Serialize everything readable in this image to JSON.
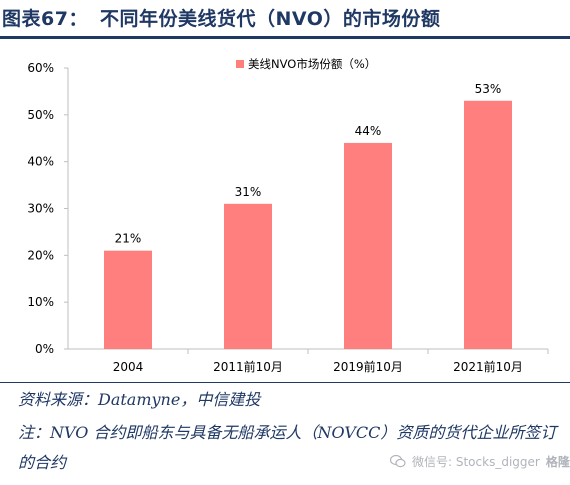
{
  "header": {
    "figure_no": "图表67：",
    "title": "不同年份美线货代（NVO）的市场份额"
  },
  "footer": {
    "source": "资料来源：Datamyne，中信建投",
    "note": "注：NVO 合约即船东与具备无船承运人（NOVCC）资质的货代企业所签订的合约"
  },
  "watermark": {
    "text": "微信号: Stocks_digger",
    "brand": "格隆汇"
  },
  "colors": {
    "bar": "#ff7f7f",
    "axis": "#bfbfbf",
    "title": "#1f3864"
  },
  "chart_data": {
    "type": "bar",
    "categories": [
      "2004",
      "2011前10月",
      "2019前10月",
      "2021前10月"
    ],
    "series": [
      {
        "name": "美线NVO市场份额（%）",
        "values": [
          21,
          31,
          44,
          53
        ]
      }
    ],
    "data_labels": [
      "21%",
      "31%",
      "44%",
      "53%"
    ],
    "y_ticks": [
      "0%",
      "10%",
      "20%",
      "30%",
      "40%",
      "50%",
      "60%"
    ],
    "ylim": [
      0,
      60
    ],
    "grid": false,
    "legend_position": "top-center"
  }
}
